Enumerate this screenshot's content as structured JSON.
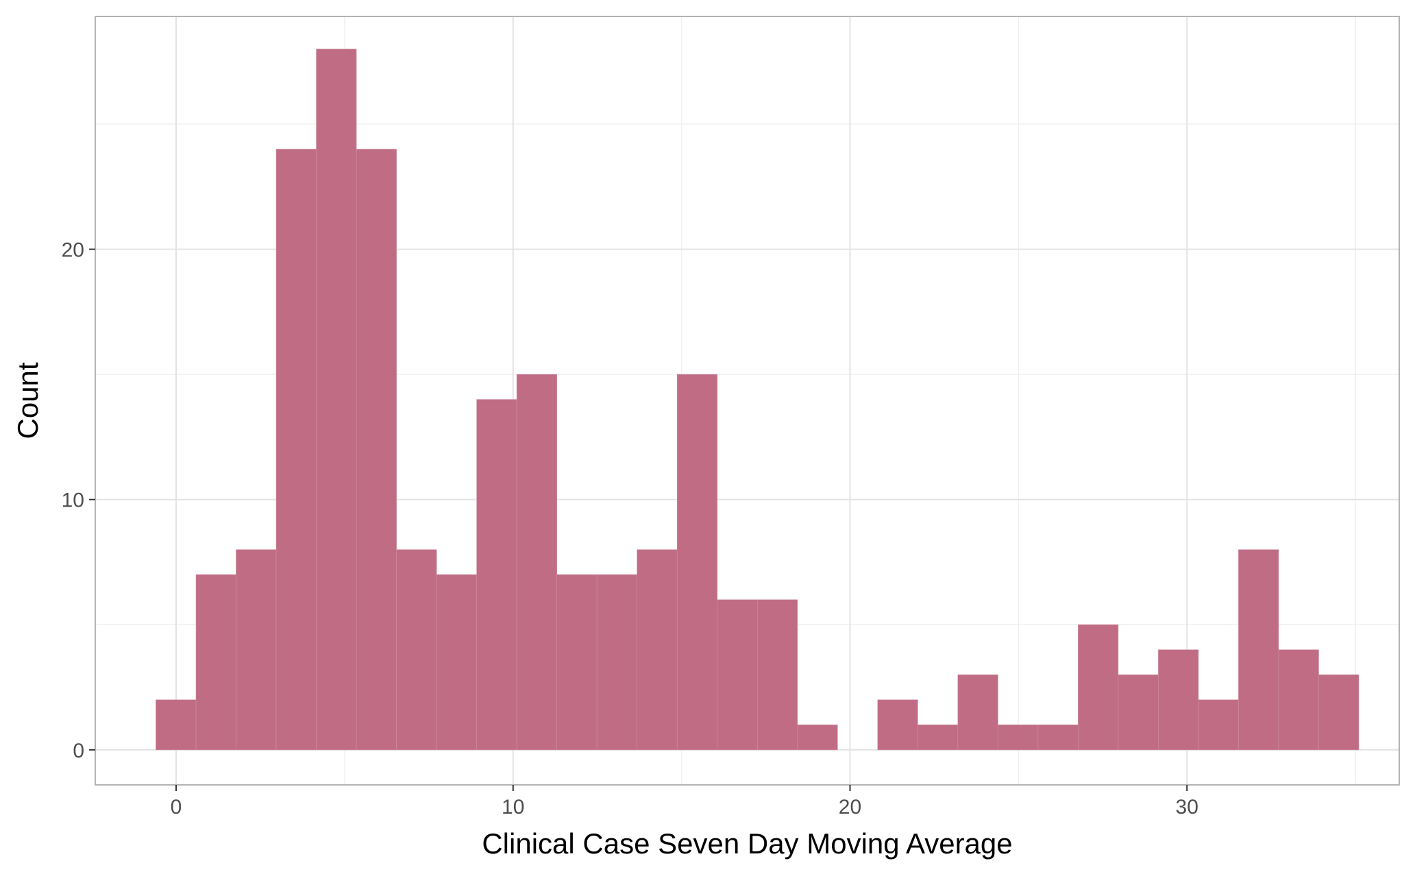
{
  "chart_data": {
    "type": "bar",
    "subtype": "histogram",
    "title": "",
    "xlabel": "Clinical Case Seven Day Moving Average",
    "ylabel": "Count",
    "xlim": [
      -2.4,
      36.3
    ],
    "ylim": [
      -1.4,
      29.3
    ],
    "x_ticks": [
      0,
      10,
      20,
      30
    ],
    "x_tick_labels": [
      "0",
      "10",
      "20",
      "30"
    ],
    "y_ticks": [
      0,
      10,
      20
    ],
    "y_tick_labels": [
      "0",
      "10",
      "20"
    ],
    "grid": true,
    "bin_start": -0.6,
    "bin_width": 1.19,
    "bins": [
      {
        "x0": -0.6,
        "x1": 0.59,
        "count": 2
      },
      {
        "x0": 0.59,
        "x1": 1.78,
        "count": 7
      },
      {
        "x0": 1.78,
        "x1": 2.97,
        "count": 8
      },
      {
        "x0": 2.97,
        "x1": 4.16,
        "count": 24
      },
      {
        "x0": 4.16,
        "x1": 5.35,
        "count": 28
      },
      {
        "x0": 5.35,
        "x1": 6.54,
        "count": 24
      },
      {
        "x0": 6.54,
        "x1": 7.73,
        "count": 8
      },
      {
        "x0": 7.73,
        "x1": 8.92,
        "count": 7
      },
      {
        "x0": 8.92,
        "x1": 10.11,
        "count": 14
      },
      {
        "x0": 10.11,
        "x1": 11.3,
        "count": 15
      },
      {
        "x0": 11.3,
        "x1": 12.49,
        "count": 7
      },
      {
        "x0": 12.49,
        "x1": 13.68,
        "count": 7
      },
      {
        "x0": 13.68,
        "x1": 14.87,
        "count": 8
      },
      {
        "x0": 14.87,
        "x1": 16.06,
        "count": 15
      },
      {
        "x0": 16.06,
        "x1": 17.25,
        "count": 6
      },
      {
        "x0": 17.25,
        "x1": 18.44,
        "count": 6
      },
      {
        "x0": 18.44,
        "x1": 19.63,
        "count": 1
      },
      {
        "x0": 19.63,
        "x1": 20.82,
        "count": 0
      },
      {
        "x0": 20.82,
        "x1": 22.01,
        "count": 2
      },
      {
        "x0": 22.01,
        "x1": 23.2,
        "count": 1
      },
      {
        "x0": 23.2,
        "x1": 24.39,
        "count": 3
      },
      {
        "x0": 24.39,
        "x1": 25.58,
        "count": 1
      },
      {
        "x0": 25.58,
        "x1": 26.77,
        "count": 1
      },
      {
        "x0": 26.77,
        "x1": 27.96,
        "count": 5
      },
      {
        "x0": 27.96,
        "x1": 29.15,
        "count": 3
      },
      {
        "x0": 29.15,
        "x1": 30.34,
        "count": 4
      },
      {
        "x0": 30.34,
        "x1": 31.53,
        "count": 2
      },
      {
        "x0": 31.53,
        "x1": 32.72,
        "count": 8
      },
      {
        "x0": 32.72,
        "x1": 33.91,
        "count": 4
      },
      {
        "x0": 33.91,
        "x1": 35.1,
        "count": 3
      }
    ],
    "bar_color": "#c06c84"
  }
}
